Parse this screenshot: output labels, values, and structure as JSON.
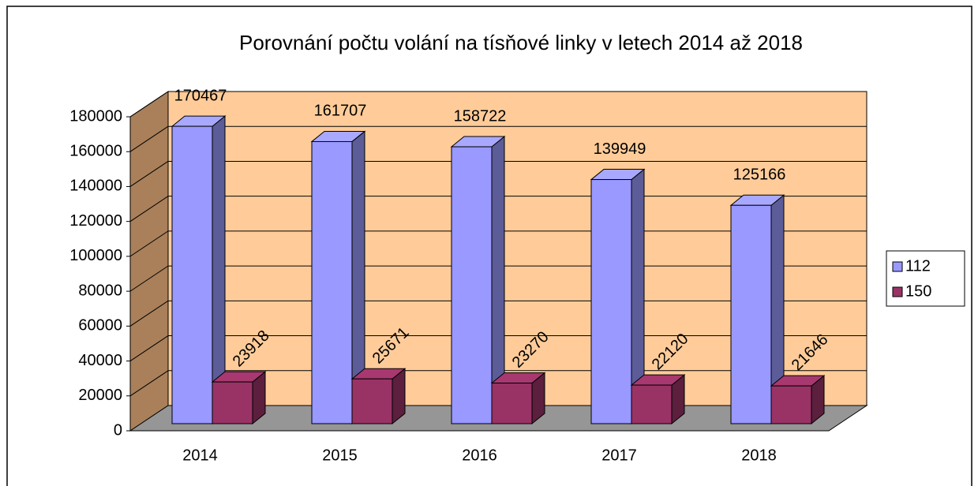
{
  "chart_data": {
    "type": "bar3d",
    "title": "Porovnání počtu volání na tísňové linky v letech 2014 až 2018",
    "categories": [
      "2014",
      "2015",
      "2016",
      "2017",
      "2018"
    ],
    "series": [
      {
        "name": "112",
        "color": "#9999ff",
        "values": [
          170467,
          161707,
          158722,
          139949,
          125166
        ]
      },
      {
        "name": "150",
        "color": "#993366",
        "values": [
          23918,
          25671,
          23270,
          22120,
          21646
        ]
      }
    ],
    "ylim": [
      0,
      180000
    ],
    "yticks": [
      0,
      20000,
      40000,
      60000,
      80000,
      100000,
      120000,
      140000,
      160000,
      180000
    ],
    "grid": true,
    "legend": "right"
  }
}
